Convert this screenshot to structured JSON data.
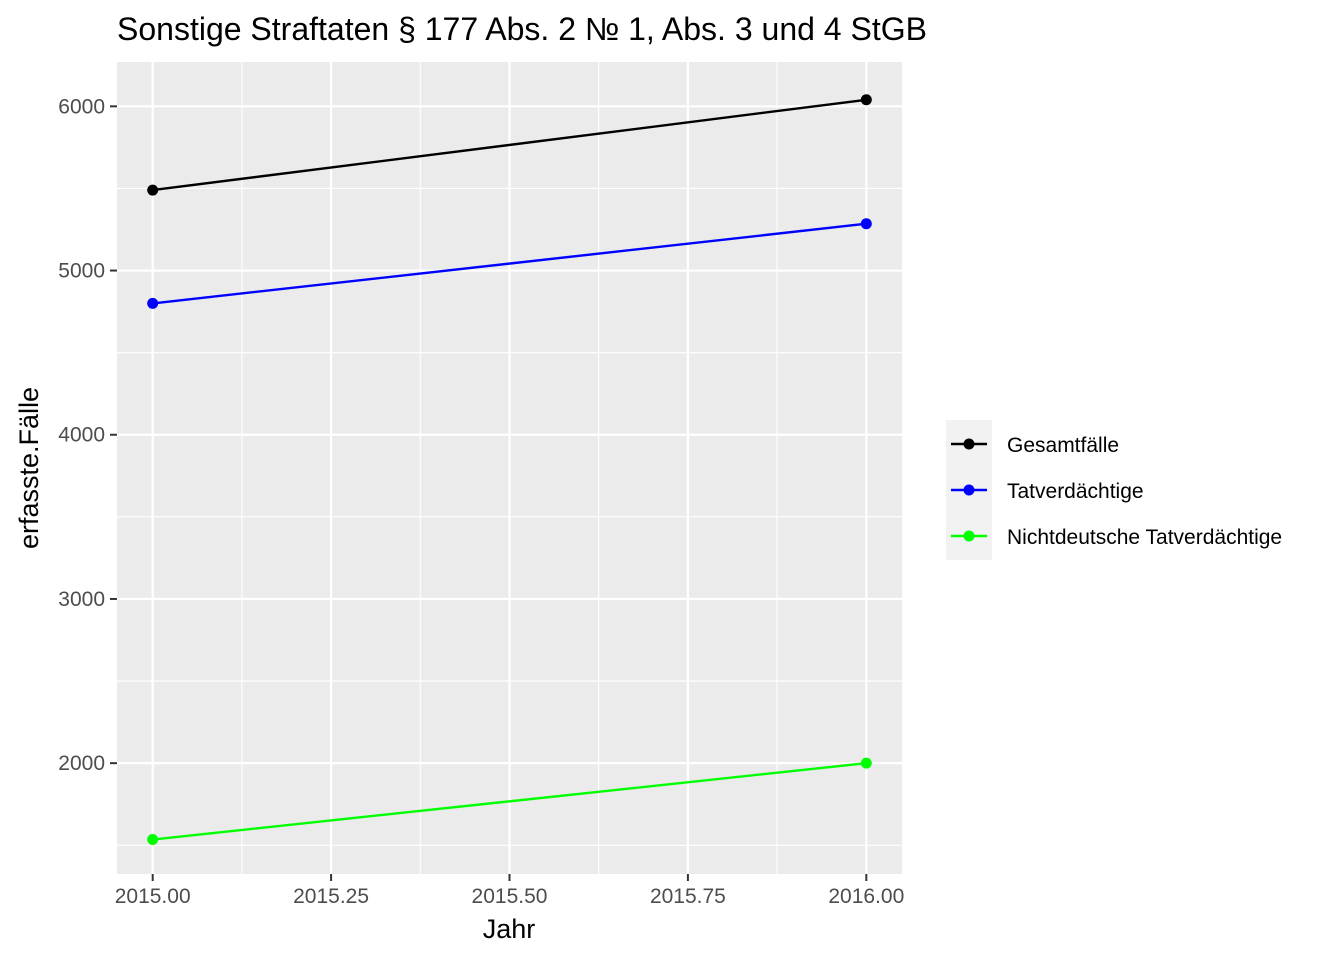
{
  "chart_data": {
    "type": "line",
    "title": "Sonstige Straftaten § 177 Abs. 2 № 1, Abs. 3 und 4 StGB",
    "xlabel": "Jahr",
    "ylabel": "erfasste.Fälle",
    "x": [
      2015,
      2016
    ],
    "xticks": [
      2015.0,
      2015.25,
      2015.5,
      2015.75,
      2016.0
    ],
    "xtick_labels": [
      "2015.00",
      "2015.25",
      "2015.50",
      "2015.75",
      "2016.00"
    ],
    "xlim": [
      2014.95,
      2016.05
    ],
    "yticks": [
      2000,
      3000,
      4000,
      5000,
      6000
    ],
    "ytick_labels": [
      "2000",
      "3000",
      "4000",
      "5000",
      "6000"
    ],
    "ylim": [
      1325,
      6270
    ],
    "grid": true,
    "legend_position": "right",
    "series": [
      {
        "name": "Gesamtfälle",
        "color": "#000000",
        "values": [
          5490,
          6040
        ]
      },
      {
        "name": "Tatverdächtige",
        "color": "#0000ff",
        "values": [
          4800,
          5285
        ]
      },
      {
        "name": "Nichtdeutsche Tatverdächtige",
        "color": "#00ff00",
        "values": [
          1535,
          2000
        ]
      }
    ]
  }
}
